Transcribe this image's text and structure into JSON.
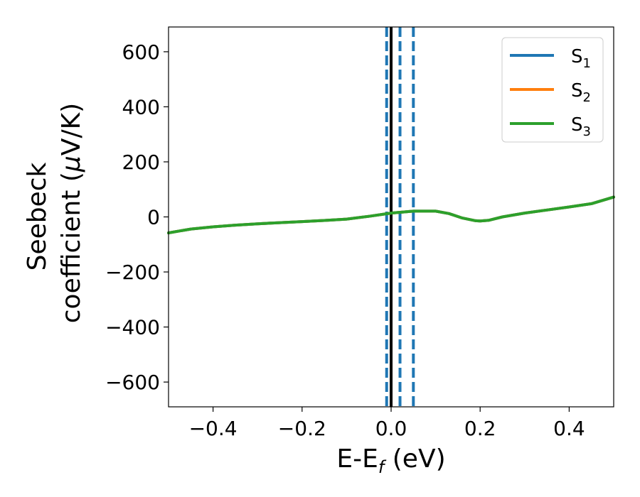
{
  "chart_data": {
    "type": "line",
    "title": "",
    "xlabel": {
      "main": "E-E",
      "sub": "f",
      "tail": " (eV)"
    },
    "ylabel": {
      "line1": "Seebeck",
      "line2_pre": "coefficient  (",
      "mu": "μ",
      "line2_post": "V/K)"
    },
    "xlim": [
      -0.5,
      0.5
    ],
    "ylim": [
      -690,
      690
    ],
    "xticks": [
      -0.4,
      -0.2,
      0.0,
      0.2,
      0.4
    ],
    "xtick_labels": [
      "−0.4",
      "−0.2",
      "0.0",
      "0.2",
      "0.4"
    ],
    "yticks": [
      600,
      400,
      200,
      0,
      -200,
      -400,
      -600
    ],
    "ytick_labels": [
      "600",
      "400",
      "200",
      "0",
      "−200",
      "−400",
      "−600"
    ],
    "grid": false,
    "legend_position": "top-right",
    "x": [
      -0.5,
      -0.45,
      -0.4,
      -0.35,
      -0.3,
      -0.25,
      -0.2,
      -0.15,
      -0.1,
      -0.05,
      0.0,
      0.05,
      0.1,
      0.13,
      0.16,
      0.19,
      0.2,
      0.22,
      0.25,
      0.3,
      0.35,
      0.4,
      0.45,
      0.5
    ],
    "series": [
      {
        "name": "S",
        "sub": "1",
        "color": "#1f77b4",
        "values": [
          -58,
          -44,
          -36,
          -30,
          -25,
          -21,
          -17,
          -13,
          -8,
          2,
          14,
          21,
          21,
          12,
          -4,
          -14,
          -15,
          -12,
          0,
          14,
          25,
          36,
          48,
          72
        ]
      },
      {
        "name": "S",
        "sub": "2",
        "color": "#ff7f0e",
        "values": [
          -58,
          -44,
          -36,
          -30,
          -25,
          -21,
          -17,
          -13,
          -8,
          2,
          14,
          21,
          21,
          12,
          -4,
          -14,
          -15,
          -12,
          0,
          14,
          25,
          36,
          48,
          72
        ]
      },
      {
        "name": "S",
        "sub": "3",
        "color": "#2ca02c",
        "values": [
          -58,
          -44,
          -36,
          -30,
          -25,
          -21,
          -17,
          -13,
          -8,
          2,
          14,
          21,
          21,
          12,
          -4,
          -14,
          -15,
          -12,
          0,
          14,
          25,
          36,
          48,
          72
        ]
      }
    ],
    "vlines": [
      {
        "x": 0.0,
        "style": "solid",
        "color": "#000000"
      },
      {
        "x": -0.01,
        "style": "dashed",
        "color": "#1f77b4"
      },
      {
        "x": 0.02,
        "style": "dashed",
        "color": "#1f77b4"
      },
      {
        "x": 0.05,
        "style": "dashed",
        "color": "#1f77b4"
      }
    ]
  }
}
